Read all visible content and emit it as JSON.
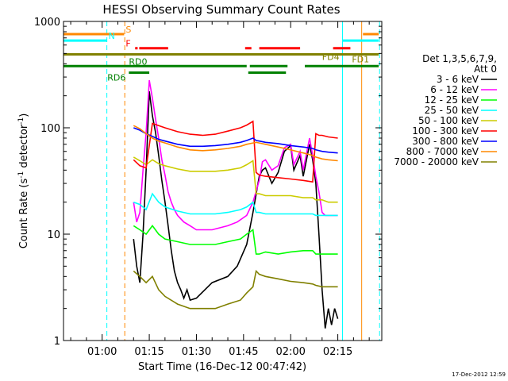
{
  "chart_data": {
    "type": "line",
    "title": "HESSI Observing Summary Count Rates",
    "xlabel": "Start Time (16-Dec-12 00:47:42)",
    "ylabel": "Count Rate (s",
    "ylabel_sup": "-1",
    "ylabel_mid": " detector",
    "ylabel_sup2": "-1",
    "ylabel_end": ")",
    "yscale": "log",
    "xlim": [
      47.7,
      149.0
    ],
    "ylim": [
      1,
      1000
    ],
    "x_ticks": [
      60,
      75,
      90,
      105,
      120,
      135
    ],
    "x_tick_labels": [
      "01:00",
      "01:15",
      "01:30",
      "01:45",
      "02:00",
      "02:15"
    ],
    "y_ticks": [
      1,
      10,
      100,
      1000
    ],
    "y_tick_labels": [
      "1",
      "10",
      "100",
      "1000"
    ],
    "legend_header": [
      "Det 1,3,5,6,7,9,",
      "Att 0"
    ],
    "timestamp": "17-Dec-2012 12:59",
    "series": [
      {
        "name": "3 - 6 keV",
        "color": "#000000",
        "x": [
          70,
          71,
          72,
          73,
          74,
          75,
          76,
          77,
          78,
          79,
          80,
          81,
          82,
          83,
          84,
          85,
          86,
          87,
          88,
          90,
          95,
          100,
          103,
          106,
          108,
          110,
          111,
          112,
          114,
          116,
          118,
          120,
          121,
          123,
          124,
          126,
          127,
          128,
          129,
          130,
          131,
          132,
          133,
          134,
          135
        ],
        "values": [
          9,
          5,
          3.5,
          10,
          40,
          220,
          130,
          90,
          55,
          32,
          20,
          12,
          7,
          4.5,
          3.5,
          3,
          2.5,
          3,
          2.4,
          2.5,
          3.5,
          4,
          5,
          8,
          16,
          35,
          40,
          42,
          30,
          38,
          60,
          68,
          40,
          55,
          35,
          70,
          50,
          30,
          10,
          3,
          1.3,
          2,
          1.4,
          2,
          1.6
        ]
      },
      {
        "name": "6 - 12 keV",
        "color": "#ff00ff",
        "x": [
          70,
          71,
          72,
          73,
          74,
          75,
          76,
          77,
          78,
          79,
          80,
          81,
          82,
          83,
          84,
          86,
          88,
          90,
          95,
          100,
          103,
          106,
          108,
          110,
          111,
          112,
          114,
          116,
          118,
          120,
          121,
          123,
          124,
          126,
          127,
          128,
          129,
          130,
          131,
          132,
          133,
          134,
          135
        ],
        "values": [
          20,
          13,
          16,
          40,
          90,
          280,
          190,
          120,
          80,
          50,
          36,
          25,
          20,
          17,
          15,
          13,
          12,
          11,
          11,
          12,
          13,
          15,
          20,
          32,
          48,
          50,
          40,
          44,
          65,
          70,
          45,
          60,
          40,
          80,
          55,
          35,
          25,
          16,
          15,
          15,
          15,
          15,
          15
        ]
      },
      {
        "name": "12 - 25 keV",
        "color": "#00ff00",
        "x": [
          70,
          72,
          74,
          76,
          78,
          80,
          84,
          88,
          92,
          96,
          100,
          104,
          106,
          108,
          109,
          110,
          112,
          116,
          120,
          124,
          127,
          128,
          130,
          132,
          135
        ],
        "values": [
          12,
          11,
          10,
          12,
          10,
          9,
          8.5,
          8,
          8,
          8,
          8.5,
          9,
          10,
          11,
          6.5,
          6.5,
          6.8,
          6.5,
          6.8,
          7,
          7,
          6.5,
          6.5,
          6.5,
          6.5
        ]
      },
      {
        "name": "25 - 50 keV",
        "color": "#00ffff",
        "x": [
          70,
          72,
          74,
          76,
          78,
          80,
          84,
          88,
          92,
          96,
          100,
          104,
          106,
          108,
          109,
          110,
          112,
          116,
          120,
          124,
          127,
          128,
          130,
          132,
          135
        ],
        "values": [
          20,
          19,
          17,
          24,
          20,
          18,
          16.5,
          15.5,
          15.5,
          15.5,
          16,
          17,
          18,
          20,
          16,
          16,
          15.5,
          15.5,
          15.5,
          15.5,
          15.5,
          15,
          15,
          15,
          15
        ]
      },
      {
        "name": "50 - 100 keV",
        "color": "#cccc00",
        "x": [
          70,
          72,
          74,
          76,
          78,
          80,
          84,
          88,
          92,
          96,
          100,
          104,
          106,
          108,
          109,
          110,
          112,
          116,
          120,
          124,
          127,
          128,
          130,
          132,
          135
        ],
        "values": [
          53,
          49,
          45,
          50,
          46,
          44,
          41,
          39,
          39,
          39,
          40,
          42,
          45,
          49,
          24,
          24,
          23,
          23,
          23,
          22,
          22,
          21,
          21,
          20,
          20
        ]
      },
      {
        "name": "100 - 300 keV",
        "color": "#ff0000",
        "x": [
          70,
          72,
          74,
          76,
          78,
          80,
          84,
          88,
          92,
          96,
          100,
          104,
          106,
          108,
          109,
          110,
          112,
          116,
          120,
          124,
          127,
          128,
          129,
          130,
          132,
          135
        ],
        "values": [
          50,
          44,
          42,
          110,
          105,
          100,
          92,
          87,
          85,
          87,
          93,
          100,
          106,
          115,
          38,
          36,
          35,
          34,
          33,
          32,
          31,
          88,
          85,
          85,
          82,
          80
        ]
      },
      {
        "name": "300 - 800 keV",
        "color": "#0000ff",
        "x": [
          70,
          72,
          74,
          76,
          78,
          80,
          84,
          88,
          92,
          96,
          100,
          104,
          106,
          108,
          109,
          110,
          112,
          116,
          120,
          124,
          127,
          128,
          130,
          132,
          135
        ],
        "values": [
          100,
          95,
          88,
          83,
          78,
          75,
          70,
          67,
          67,
          68,
          70,
          73,
          76,
          80,
          76,
          75,
          73,
          71,
          68,
          66,
          64,
          62,
          60,
          59,
          58
        ]
      },
      {
        "name": "800 - 7000 keV",
        "color": "#ff8800",
        "x": [
          70,
          72,
          74,
          76,
          78,
          80,
          84,
          88,
          92,
          96,
          100,
          104,
          106,
          108,
          109,
          110,
          112,
          116,
          120,
          124,
          127,
          128,
          130,
          132,
          135
        ],
        "values": [
          105,
          98,
          88,
          80,
          75,
          72,
          66,
          62,
          61,
          62,
          64,
          67,
          70,
          72,
          73,
          72,
          70,
          66,
          62,
          58,
          55,
          53,
          51,
          50,
          49
        ]
      },
      {
        "name": "7000 - 20000 keV",
        "color": "#808000",
        "x": [
          70,
          72,
          74,
          76,
          78,
          80,
          84,
          88,
          92,
          96,
          100,
          104,
          106,
          108,
          109,
          110,
          112,
          116,
          120,
          124,
          127,
          128,
          130,
          132,
          135
        ],
        "values": [
          4.5,
          4,
          3.5,
          4,
          3,
          2.6,
          2.2,
          2,
          2,
          2,
          2.2,
          2.4,
          2.8,
          3.2,
          4.5,
          4.2,
          4,
          3.8,
          3.6,
          3.5,
          3.4,
          3.3,
          3.2,
          3.2,
          3.2
        ]
      }
    ],
    "flags": [
      {
        "label": "S",
        "color": "#ff8800",
        "y": 760,
        "label_x": 67.5,
        "segments": [
          [
            47.7,
            67
          ]
        ],
        "label_side": "right"
      },
      {
        "label": "N",
        "color": "#00ffff",
        "y": 660,
        "label_x": 62,
        "segments": [
          [
            47.7,
            61.5
          ]
        ],
        "label_side": "right"
      },
      {
        "label": "F",
        "color": "#ff0000",
        "y": 560,
        "label_x": 67.5,
        "segments": [
          [
            70.5,
            71.3
          ],
          [
            71.8,
            81
          ]
        ],
        "label_side": "right"
      },
      {
        "label": "",
        "color": "#ff0000",
        "y": 560,
        "label_x": 0,
        "segments": [
          [
            105.5,
            107.5
          ],
          [
            110,
            123
          ],
          [
            133.5,
            139
          ]
        ],
        "label_side": "none"
      },
      {
        "label": "",
        "color": "#00ffff",
        "y": 660,
        "label_x": 0,
        "segments": [
          [
            136.5,
            148
          ]
        ],
        "label_side": "none"
      },
      {
        "label": "",
        "color": "#ff8800",
        "y": 760,
        "label_x": 0,
        "segments": [
          [
            143,
            148
          ]
        ],
        "label_side": "none"
      },
      {
        "label": "FD1",
        "color": "#808000",
        "y": 490,
        "label_x": 145,
        "segments": [
          [
            47.7,
            148
          ]
        ],
        "label_side": "left"
      },
      {
        "label": "RD0",
        "color": "#008000",
        "y": 380,
        "label_x": 68.5,
        "segments": [
          [
            47.7,
            106
          ],
          [
            107,
            119
          ],
          [
            124.5,
            148
          ]
        ],
        "label_side": "right"
      },
      {
        "label": "FD4",
        "color": "#808000",
        "y": 420,
        "label_x": 130,
        "segments": [],
        "label_side": "right"
      },
      {
        "label": "RD6",
        "color": "#008000",
        "y": 330,
        "label_x": 67.5,
        "segments": [
          [
            68.5,
            75
          ],
          [
            106.5,
            118.5
          ]
        ],
        "label_side": "left"
      }
    ],
    "vlines": [
      {
        "x": 61.5,
        "color": "#00ffff"
      },
      {
        "x": 67.2,
        "color": "#ff8800"
      },
      {
        "x": 136.5,
        "color": "#00ffff",
        "solid": true
      },
      {
        "x": 142.6,
        "color": "#ff8800",
        "solid": true
      },
      {
        "x": 148.3,
        "color": "#00ffff"
      }
    ]
  }
}
